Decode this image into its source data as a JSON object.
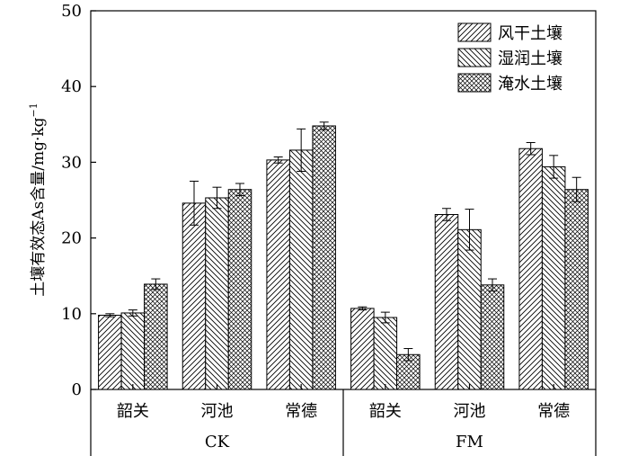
{
  "chart_data": {
    "type": "bar",
    "ylabel": "土壤有效态As含量/mg·kg",
    "ylabel_sup": "−1",
    "ylim": [
      0,
      50
    ],
    "yticks": [
      0,
      10,
      20,
      30,
      40,
      50
    ],
    "groups": [
      {
        "name": "CK",
        "categories": [
          "韶关",
          "河池",
          "常德"
        ]
      },
      {
        "name": "FM",
        "categories": [
          "韶关",
          "河池",
          "常德"
        ]
      }
    ],
    "series": [
      {
        "name": "风干土壤",
        "pattern": "diag-fwd",
        "values": [
          9.8,
          24.6,
          30.3,
          10.7,
          23.1,
          31.8
        ],
        "errors": [
          0.2,
          2.9,
          0.4,
          0.2,
          0.8,
          0.8
        ]
      },
      {
        "name": "湿润土壤",
        "pattern": "diag-back",
        "values": [
          10.1,
          25.3,
          31.6,
          9.5,
          21.1,
          29.4
        ],
        "errors": [
          0.4,
          1.4,
          2.8,
          0.7,
          2.7,
          1.5
        ]
      },
      {
        "name": "淹水土壤",
        "pattern": "crosshatch",
        "values": [
          13.9,
          26.4,
          34.8,
          4.6,
          13.8,
          26.4
        ],
        "errors": [
          0.7,
          0.8,
          0.5,
          0.8,
          0.8,
          1.6
        ]
      }
    ],
    "legend_position": "top-right",
    "grid": false
  }
}
